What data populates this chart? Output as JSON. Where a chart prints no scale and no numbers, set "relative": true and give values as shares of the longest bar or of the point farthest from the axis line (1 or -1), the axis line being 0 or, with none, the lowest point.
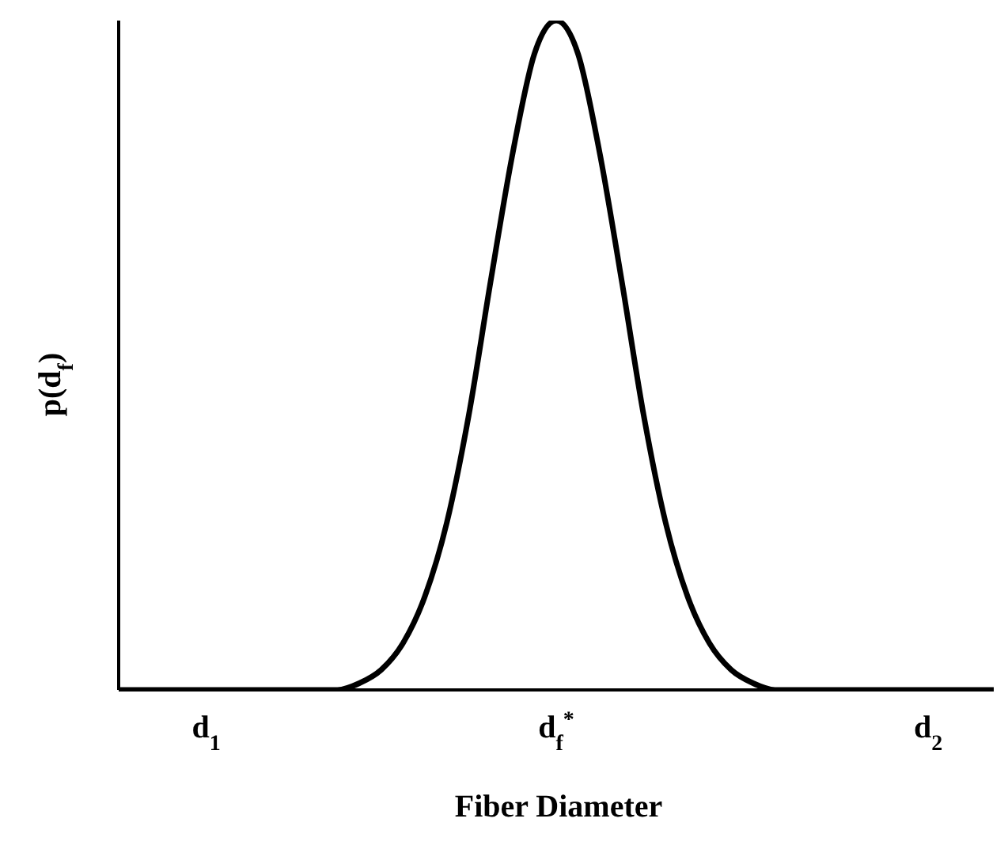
{
  "chart_data": {
    "type": "line",
    "relative": true,
    "xlabel": "Fiber Diameter",
    "ylabel": "p(d$_{f}$)",
    "categories": [
      null,
      null,
      null,
      null,
      "d$_{1}$",
      null,
      null,
      null,
      null,
      null,
      null,
      null,
      null,
      null,
      null,
      null,
      null,
      null,
      null,
      null,
      "d$_{f}$$^{*}$",
      null,
      null,
      null,
      null,
      null,
      null,
      null,
      null,
      null,
      null,
      null,
      null,
      null,
      null,
      null,
      null,
      "d$_{2}$",
      null,
      null,
      null
    ],
    "values": [
      0,
      0,
      0,
      0,
      0,
      0,
      0,
      0,
      0,
      0,
      0,
      0.01,
      0.03,
      0.07,
      0.14,
      0.25,
      0.41,
      0.61,
      0.8,
      0.95,
      1,
      0.95,
      0.8,
      0.61,
      0.41,
      0.25,
      0.14,
      0.07,
      0.03,
      0.01,
      0,
      0,
      0,
      0,
      0,
      0,
      0,
      0,
      0,
      0,
      0
    ],
    "color": "#000000",
    "marker": "none",
    "line_style": "solid"
  }
}
